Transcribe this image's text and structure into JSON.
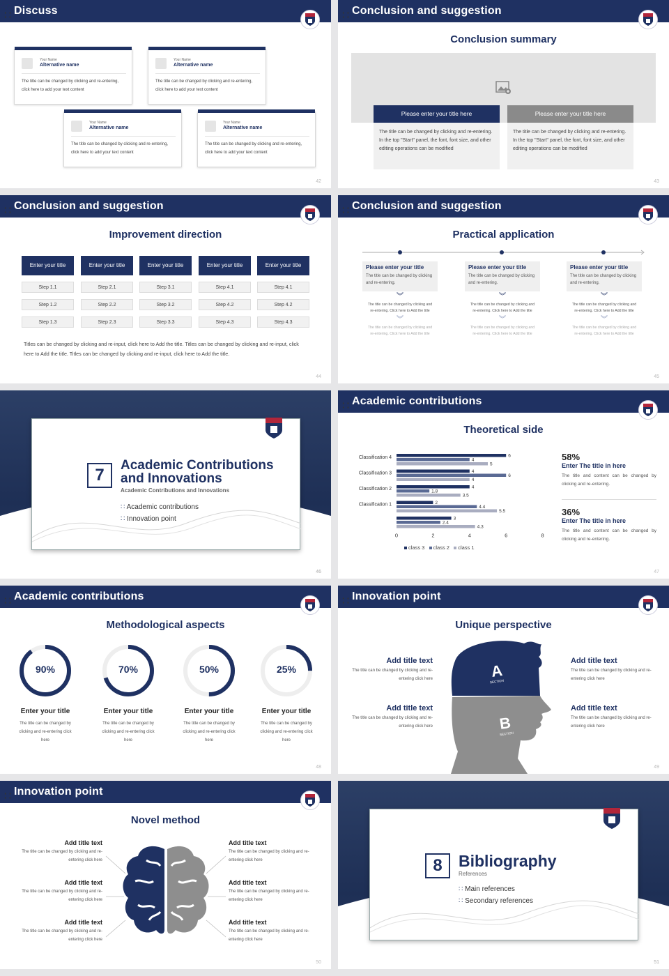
{
  "s42": {
    "title": "Discuss",
    "page": "42",
    "cards": [
      {
        "small": "Your Name",
        "name": "Alternative name",
        "text": "The title can be changed by clicking and re-entering, click here to add your text content"
      },
      {
        "small": "Your Name",
        "name": "Alternative name",
        "text": "The title can be changed by clicking and re-entering, click here to add your text content"
      },
      {
        "small": "Your Name",
        "name": "Alternative name",
        "text": "The title can be changed by clicking and re-entering, click here to add your text content"
      },
      {
        "small": "Your Name",
        "name": "Alternative name",
        "text": "The title can be changed by clicking and re-entering, click here to add your text content"
      }
    ]
  },
  "s43": {
    "title": "Conclusion and suggestion",
    "page": "43",
    "heading": "Conclusion summary",
    "left_title": "Please enter your title here",
    "right_title": "Please enter your title here",
    "left_text": "The title can be changed by clicking and re-entering. In the top \"Start\" panel, the font, font size, and other editing operations can be modified",
    "right_text": "The title can be changed by clicking and re-entering. In the top \"Start\" panel, the font, font size, and other editing operations can be modified"
  },
  "s44": {
    "title": "Conclusion and suggestion",
    "page": "44",
    "heading": "Improvement direction",
    "cols": [
      {
        "head": "Enter your title",
        "steps": [
          "Step 1.1",
          "Step 1.2",
          "Step 1.3"
        ]
      },
      {
        "head": "Enter your title",
        "steps": [
          "Step 2.1",
          "Step 2.2",
          "Step 2.3"
        ]
      },
      {
        "head": "Enter your title",
        "steps": [
          "Step 3.1",
          "Step 3.2",
          "Step 3.3"
        ]
      },
      {
        "head": "Enter your title",
        "steps": [
          "Step 4.1",
          "Step 4.2",
          "Step 4.3"
        ]
      },
      {
        "head": "Enter your title",
        "steps": [
          "Step 4.1",
          "Step 4.2",
          "Step 4.3"
        ]
      }
    ],
    "footer": "Titles can be changed by clicking and re-input, click here to Add the title. Titles can be changed by clicking and re-input, click here to Add the title. Titles can be changed by clicking and re-input, click here to Add the title."
  },
  "s45": {
    "title": "Conclusion and suggestion",
    "page": "45",
    "heading": "Practical application",
    "cols": [
      {
        "head": "Please enter your title",
        "text": "The title can be changed by clicking and re-entering.",
        "sub1": "The title can be changed by clicking and re-entering. Click here to Add the title",
        "sub2": "The title can be changed by clicking and re-entering. Click here to Add the title"
      },
      {
        "head": "Please enter your title",
        "text": "The title can be changed by clicking and re-entering.",
        "sub1": "The title can be changed by clicking and re-entering. Click here to Add the title",
        "sub2": "The title can be changed by clicking and re-entering. Click here to Add the title"
      },
      {
        "head": "Please enter your title",
        "text": "The title can be changed by clicking and re-entering.",
        "sub1": "The title can be changed by clicking and re-entering. Click here to Add the title",
        "sub2": "The title can be changed by clicking and re-entering. Click here to Add the title"
      }
    ]
  },
  "s46": {
    "page": "46",
    "number": "7",
    "title_line1": "Academic Contributions",
    "title_line2": "and Innovations",
    "subtitle": "Academic Contributions and Innovations",
    "items": [
      "Academic contributions",
      "Innovation point"
    ]
  },
  "s47": {
    "title": "Academic contributions",
    "page": "47",
    "heading": "Theoretical side",
    "stats": [
      {
        "pct": "58%",
        "head": "Enter The title in here",
        "text": "The title and content can be changed by clicking and re-entering."
      },
      {
        "pct": "36%",
        "head": "Enter The title in here",
        "text": "The title and content can be changed by clicking and re-entering."
      }
    ]
  },
  "chart_data": {
    "type": "bar",
    "orientation": "horizontal",
    "categories": [
      "Classification 4",
      "Classification 3",
      "Classification 2",
      "Classification 1",
      ""
    ],
    "series": [
      {
        "name": "class 3",
        "color": "#1f3162",
        "values": [
          6,
          4,
          4,
          2,
          3
        ]
      },
      {
        "name": "class 2",
        "color": "#5a6a94",
        "values": [
          4,
          6,
          1.8,
          4.4,
          2.4
        ]
      },
      {
        "name": "class 1",
        "color": "#a9adc0",
        "values": [
          5,
          4,
          3.5,
          5.5,
          4.3
        ]
      }
    ],
    "xticks": [
      "0",
      "2",
      "4",
      "6",
      "8"
    ],
    "xlim": [
      0,
      8
    ]
  },
  "s48": {
    "title": "Academic contributions",
    "page": "48",
    "heading": "Methodological aspects",
    "rings": [
      {
        "pct": "90%",
        "value": 90,
        "head": "Enter your title",
        "text": "The title can be changed by clicking and re-entering click here"
      },
      {
        "pct": "70%",
        "value": 70,
        "head": "Enter your title",
        "text": "The title can be changed by clicking and re-entering click here"
      },
      {
        "pct": "50%",
        "value": 50,
        "head": "Enter your title",
        "text": "The title can be changed by clicking and re-entering click here"
      },
      {
        "pct": "25%",
        "value": 25,
        "head": "Enter your title",
        "text": "The title can be changed by clicking and re-entering click here"
      }
    ]
  },
  "s49": {
    "title": "Innovation point",
    "page": "49",
    "heading": "Unique perspective",
    "a": "A",
    "b": "B",
    "section": "SECTION",
    "items": [
      {
        "head": "Add title text",
        "text": "The title can be changed by clicking and re-entering click here"
      },
      {
        "head": "Add title text",
        "text": "The title can be changed by clicking and re-entering click here"
      },
      {
        "head": "Add title text",
        "text": "The title can be changed by clicking and re-entering click here"
      },
      {
        "head": "Add title text",
        "text": "The title can be changed by clicking and re-entering click here"
      }
    ]
  },
  "s50": {
    "title": "Innovation point",
    "page": "50",
    "heading": "Novel method",
    "items": [
      {
        "head": "Add title text",
        "text": "The title can be changed by clicking and re-entering click here"
      },
      {
        "head": "Add title text",
        "text": "The title can be changed by clicking and re-entering click here"
      },
      {
        "head": "Add title text",
        "text": "The title can be changed by clicking and re-entering click here"
      },
      {
        "head": "Add title text",
        "text": "The title can be changed by clicking and re-entering click here"
      },
      {
        "head": "Add title text",
        "text": "The title can be changed by clicking and re-entering click here"
      },
      {
        "head": "Add title text",
        "text": "The title can be changed by clicking and re-entering click here"
      }
    ]
  },
  "s51": {
    "page": "51",
    "number": "8",
    "title": "Bibliography",
    "subtitle": "References",
    "items": [
      "Main references",
      "Secondary references"
    ]
  },
  "colors": {
    "navy": "#1f3162",
    "gray": "#8a8a8a",
    "light": "#f0f0f0"
  }
}
